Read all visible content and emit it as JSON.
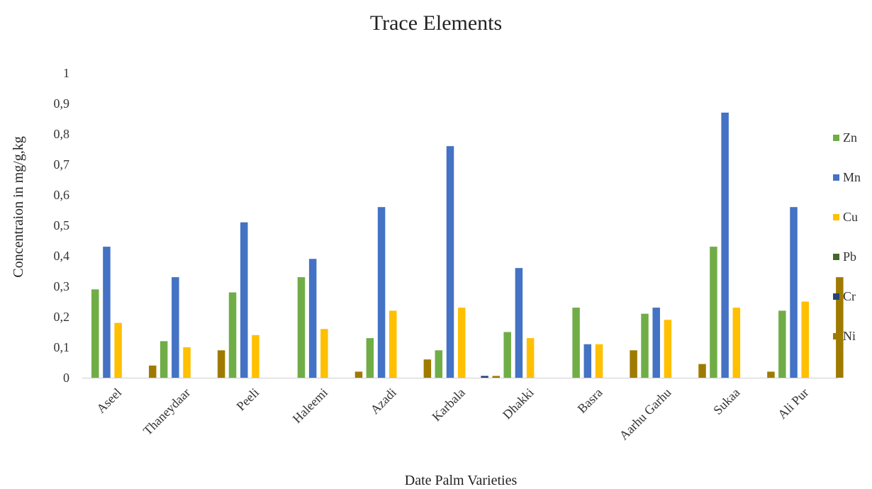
{
  "chart_data": {
    "type": "bar",
    "title": "Trace Elements",
    "xlabel": "Date Palm Varieties",
    "ylabel": "Concentraion in mg/g,kg",
    "ylim": [
      0,
      1
    ],
    "yticks": [
      "0",
      "0,1",
      "0,2",
      "0,3",
      "0,4",
      "0,5",
      "0,6",
      "0,7",
      "0,8",
      "0,9",
      "1"
    ],
    "grid": false,
    "legend_position": "right",
    "categories": [
      "Aseel",
      "Thaneydaar",
      "Peeli",
      "Haleemi",
      "Azadi",
      "Karbala",
      "Dhakki",
      "Basra",
      "Aarhu Garhu",
      "Sukaa",
      "Ali Pur"
    ],
    "series": [
      {
        "name": "Zn",
        "color": "#70ad47",
        "values": [
          0.29,
          0.12,
          0.28,
          0.33,
          0.13,
          0.09,
          0.15,
          0.23,
          0.21,
          0.43,
          0.22
        ]
      },
      {
        "name": "Mn",
        "color": "#4472c4",
        "values": [
          0.43,
          0.33,
          0.51,
          0.39,
          0.56,
          0.76,
          0.36,
          0.11,
          0.23,
          0.87,
          0.56
        ]
      },
      {
        "name": "Cu",
        "color": "#ffc000",
        "values": [
          0.18,
          0.1,
          0.14,
          0.16,
          0.22,
          0.23,
          0.13,
          0.11,
          0.19,
          0.23,
          0.25
        ]
      },
      {
        "name": "Pb",
        "color": "#43682b",
        "values": [
          0,
          0,
          0,
          0,
          0,
          0,
          0,
          0,
          0,
          0,
          0
        ]
      },
      {
        "name": "Cr",
        "color": "#264478",
        "values": [
          0,
          0,
          0,
          0,
          0,
          0.006,
          0,
          0,
          0,
          0,
          0
        ]
      },
      {
        "name": "Ni",
        "color": "#9e7b00",
        "values": [
          0.04,
          0.09,
          0,
          0.02,
          0.06,
          0.006,
          0,
          0.09,
          0.045,
          0.02,
          0.33
        ]
      }
    ]
  }
}
